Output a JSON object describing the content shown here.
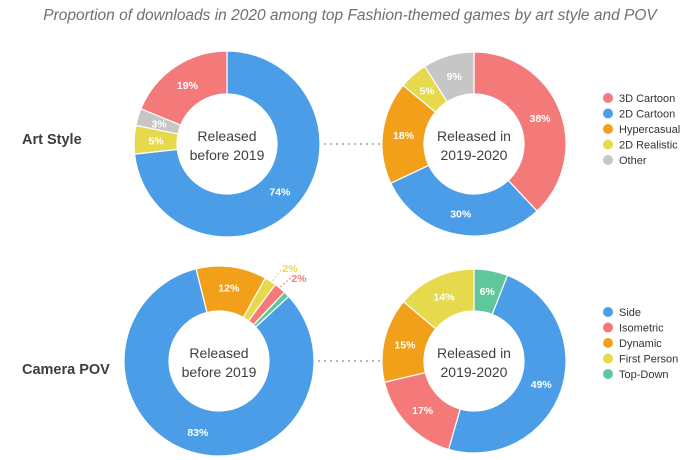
{
  "title": "Proportion of downloads in 2020 among top Fashion-themed games by art style and POV",
  "chart_data": [
    {
      "type": "pie",
      "row": "Art Style",
      "center_label": [
        "Released",
        "before 2019"
      ],
      "slices": [
        {
          "category": "2D Cartoon",
          "value": 74,
          "label": "74%"
        },
        {
          "category": "2D Realistic",
          "value": 5,
          "label": "5%"
        },
        {
          "category": "Other",
          "value": 3,
          "label": "3%"
        },
        {
          "category": "3D Cartoon",
          "value": 19,
          "label": "19%"
        }
      ]
    },
    {
      "type": "pie",
      "row": "Art Style",
      "center_label": [
        "Released in",
        "2019-2020"
      ],
      "slices": [
        {
          "category": "3D Cartoon",
          "value": 38,
          "label": "38%"
        },
        {
          "category": "2D Cartoon",
          "value": 30,
          "label": "30%"
        },
        {
          "category": "Hypercasual",
          "value": 18,
          "label": "18%"
        },
        {
          "category": "2D Realistic",
          "value": 5,
          "label": "5%"
        },
        {
          "category": "Other",
          "value": 9,
          "label": "9%"
        }
      ]
    },
    {
      "type": "pie",
      "row": "Camera POV",
      "center_label": [
        "Released",
        "before 2019"
      ],
      "slices": [
        {
          "category": "Dynamic",
          "value": 12,
          "label": "12%"
        },
        {
          "category": "First Person",
          "value": 2,
          "label": "2%"
        },
        {
          "category": "Isometric",
          "value": 2,
          "label": "2%"
        },
        {
          "category": "Top-Down",
          "value": 1,
          "label": ""
        },
        {
          "category": "Side",
          "value": 83,
          "label": "83%"
        }
      ]
    },
    {
      "type": "pie",
      "row": "Camera POV",
      "center_label": [
        "Released in",
        "2019-2020"
      ],
      "slices": [
        {
          "category": "Top-Down",
          "value": 6,
          "label": "6%"
        },
        {
          "category": "Side",
          "value": 49,
          "label": "49%"
        },
        {
          "category": "Isometric",
          "value": 17,
          "label": "17%"
        },
        {
          "category": "Dynamic",
          "value": 15,
          "label": "15%"
        },
        {
          "category": "First Person",
          "value": 14,
          "label": "14%"
        }
      ]
    }
  ],
  "legends": [
    {
      "items": [
        "3D Cartoon",
        "2D Cartoon",
        "Hypercasual",
        "2D Realistic",
        "Other"
      ]
    },
    {
      "items": [
        "Side",
        "Isometric",
        "Dynamic",
        "First Person",
        "Top-Down"
      ]
    }
  ],
  "colors": {
    "3D Cartoon": "#f47a7a",
    "2D Cartoon": "#4a9de6",
    "Hypercasual": "#f2a01a",
    "2D Realistic": "#e6d94c",
    "Other": "#c6c6c6",
    "Side": "#4a9de6",
    "Isometric": "#f47a7a",
    "Dynamic": "#f2a01a",
    "First Person": "#e6d94c",
    "Top-Down": "#5fc79a"
  }
}
